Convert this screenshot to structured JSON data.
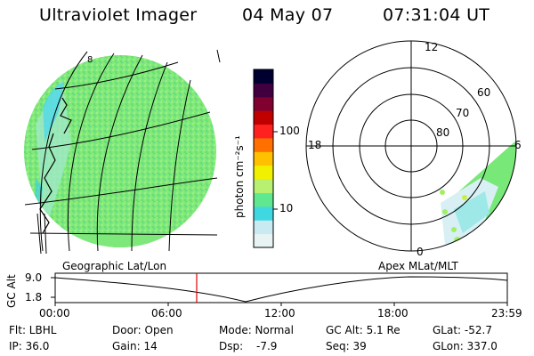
{
  "header": {
    "instrument": "Ultraviolet Imager",
    "date": "04 May 07",
    "time": "07:31:04 UT"
  },
  "colorbar": {
    "unit_label": "photon cm⁻²s⁻¹",
    "scale": "log",
    "ticks": [
      "100",
      "10"
    ],
    "colors": [
      "#e8f4f4",
      "#c8eaf0",
      "#40d8e0",
      "#60e890",
      "#b8f070",
      "#f0f000",
      "#ffc000",
      "#ff7000",
      "#ff2020",
      "#c00000",
      "#800030",
      "#400040",
      "#000030"
    ]
  },
  "polar_plot": {
    "labels": [
      "12",
      "18",
      "6",
      "0",
      "60",
      "70",
      "80"
    ]
  },
  "labels": {
    "geographic": "Geographic Lat/Lon",
    "apex": "Apex MLat/MLT"
  },
  "alt_plot": {
    "ylabel": "GC Alt",
    "yticks": [
      "9.0",
      "1.8"
    ],
    "xticks": [
      "00:00",
      "06:00",
      "12:00",
      "18:00",
      "23:59"
    ],
    "current_time_fraction": 0.313
  },
  "footer": {
    "flt": "Flt: LBHL",
    "door": "Door: Open",
    "mode": "Mode: Normal",
    "gc_alt": "GC Alt: 5.1 Re",
    "glat": "GLat: -52.7",
    "ip": "IP: 36.0",
    "gain": "Gain: 14",
    "dsp_label": "Dsp:",
    "dsp_value": "-7.9",
    "seq": "Seq: 39",
    "glon": "GLon: 337.0"
  },
  "colors": {
    "image_green": "#78e878",
    "cyan": "#60dce8",
    "marker_red": "#e00000"
  }
}
